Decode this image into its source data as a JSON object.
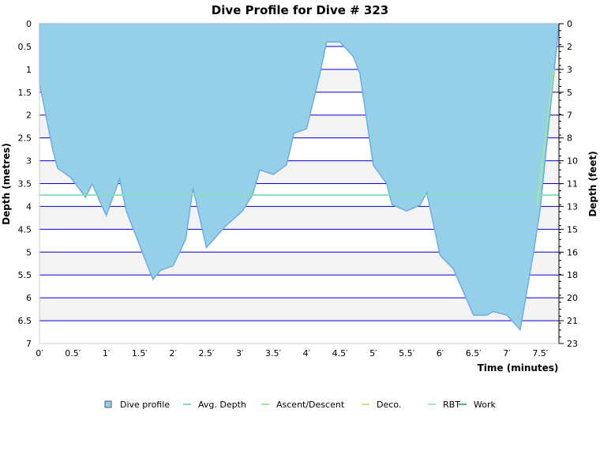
{
  "chart_data": {
    "type": "area",
    "title": "Dive Profile for Dive # 323",
    "xlabel": "Time (minutes)",
    "ylabel": "Depth (metres)",
    "y2label": "Depth (feet)",
    "xlim": [
      0,
      7.78
    ],
    "ylim": [
      0,
      7
    ],
    "y_inverted": true,
    "grid": true,
    "x_ticks": [
      "0′",
      "0.5′",
      "1′",
      "1.5′",
      "2′",
      "2.5′",
      "3′",
      "3.5′",
      "4′",
      "4.5′",
      "5′",
      "5.5′",
      "6′",
      "6.5′",
      "7′",
      "7.5′"
    ],
    "y_ticks": [
      "0",
      "0.5",
      "1",
      "1.5",
      "2",
      "2.5",
      "3",
      "3.5",
      "4",
      "4.5",
      "5",
      "5.5",
      "6",
      "6.5",
      "7"
    ],
    "y2_ticks": [
      "0",
      "2",
      "3",
      "5",
      "7",
      "8",
      "10",
      "11",
      "13",
      "15",
      "16",
      "18",
      "20",
      "21",
      "23"
    ],
    "legend_position": "bottom",
    "legend": [
      {
        "name": "Dive profile",
        "color": "#96cfe8",
        "shape": "box"
      },
      {
        "name": "Avg. Depth",
        "color": "#7fe0c0",
        "shape": "line"
      },
      {
        "name": "Ascent/Descent",
        "color": "#9ee89e",
        "shape": "line"
      },
      {
        "name": "Deco.",
        "color": "#d8e07a",
        "shape": "line"
      },
      {
        "name": "RBT",
        "color": "#a8dcf4",
        "shape": "line"
      },
      {
        "name": "Work",
        "color": "#3cb88a",
        "shape": "line"
      }
    ],
    "series": [
      {
        "name": "Dive profile",
        "color": "#96cfe8",
        "stroke": "#6aaee8",
        "x": [
          0,
          0.2,
          0.27,
          0.47,
          0.69,
          0.79,
          1.0,
          1.2,
          1.3,
          1.7,
          1.81,
          2.0,
          2.19,
          2.3,
          2.5,
          2.78,
          3.04,
          3.19,
          3.3,
          3.5,
          3.7,
          3.81,
          4.0,
          4.2,
          4.3,
          4.5,
          4.7,
          4.8,
          5.0,
          5.2,
          5.28,
          5.5,
          5.7,
          5.8,
          6.0,
          6.2,
          6.5,
          6.7,
          6.8,
          7.0,
          7.2,
          7.4,
          7.5,
          7.78
        ],
        "y": [
          1.3,
          2.77,
          3.16,
          3.37,
          3.8,
          3.51,
          4.2,
          3.4,
          4.1,
          5.6,
          5.4,
          5.3,
          4.72,
          3.6,
          4.9,
          4.44,
          4.1,
          3.75,
          3.2,
          3.3,
          3.09,
          2.4,
          2.3,
          1.1,
          0.4,
          0.4,
          0.72,
          1.1,
          3.1,
          3.5,
          3.96,
          4.1,
          3.97,
          3.7,
          5.07,
          5.37,
          6.38,
          6.38,
          6.3,
          6.38,
          6.7,
          5.0,
          4.06,
          0
        ]
      },
      {
        "name": "Avg. Depth",
        "color": "#7fe0c0",
        "value": 3.75
      },
      {
        "name": "Ascent/Descent",
        "color": "#9ee89e",
        "x": [
          7.45,
          7.7
        ],
        "y": [
          4.0,
          1.0
        ]
      }
    ]
  }
}
